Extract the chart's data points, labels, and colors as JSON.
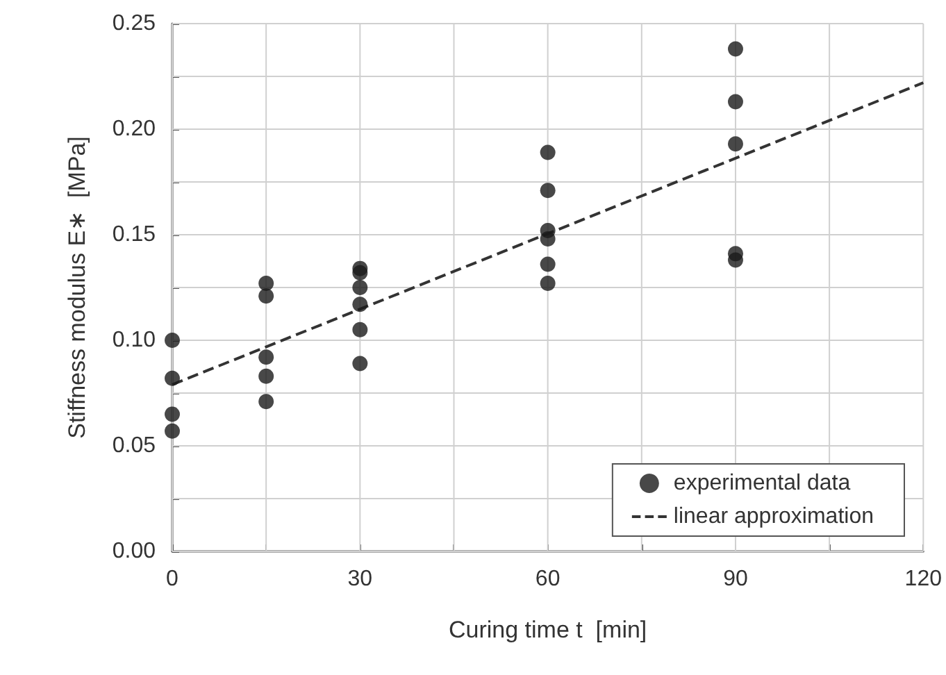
{
  "chart_data": {
    "type": "scatter",
    "xlabel": "Curing time t  [min]",
    "ylabel": "Stiffness modulus E∗  [MPa]",
    "xlim": [
      0,
      120
    ],
    "ylim": [
      0,
      0.25
    ],
    "xticks": [
      0,
      {
        "value": 15,
        "label": null
      },
      30,
      {
        "value": 45,
        "label": null
      },
      60,
      {
        "value": 75,
        "label": null
      },
      90,
      {
        "value": 105,
        "label": null
      },
      120
    ],
    "yticks": [
      {
        "value": 0,
        "label": "0.00"
      },
      {
        "value": 0.025,
        "label": null
      },
      {
        "value": 0.05,
        "label": "0.05"
      },
      {
        "value": 0.075,
        "label": null
      },
      {
        "value": 0.1,
        "label": "0.10"
      },
      {
        "value": 0.125,
        "label": null
      },
      {
        "value": 0.15,
        "label": "0.15"
      },
      {
        "value": 0.175,
        "label": null
      },
      {
        "value": 0.2,
        "label": "0.20"
      },
      {
        "value": 0.225,
        "label": null
      },
      {
        "value": 0.25,
        "label": "0.25"
      }
    ],
    "grid": true,
    "legend": "bottom right",
    "series": [
      {
        "name": "experimental data",
        "color": "#1a1a1a",
        "marker": "circle",
        "x": [
          0,
          0,
          0,
          0,
          15,
          15,
          15,
          15,
          15,
          30,
          30,
          30,
          30,
          30,
          30,
          60,
          60,
          60,
          60,
          60,
          60,
          90,
          90,
          90,
          90,
          90
        ],
        "values": [
          0.1,
          0.082,
          0.065,
          0.057,
          0.127,
          0.121,
          0.092,
          0.083,
          0.071,
          0.134,
          0.132,
          0.125,
          0.117,
          0.105,
          0.089,
          0.189,
          0.171,
          0.152,
          0.148,
          0.136,
          0.127,
          0.238,
          0.213,
          0.193,
          0.141,
          0.138
        ]
      },
      {
        "name": "linear approximation",
        "type": "line",
        "color": "#333333",
        "line_style": "dashed",
        "marker": "none",
        "x": [
          0,
          120
        ],
        "values": [
          0.079,
          0.222
        ]
      }
    ]
  }
}
